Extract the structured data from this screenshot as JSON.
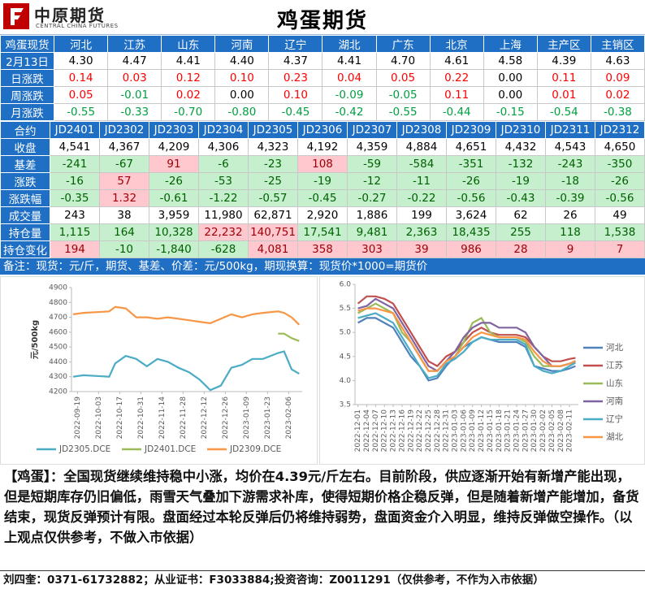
{
  "header": {
    "logo_cn": "中原期货",
    "logo_en": "CENTRAL CHINA FUTURES",
    "title": "鸡蛋期货"
  },
  "spot_table": {
    "header": [
      "鸡蛋现货",
      "河北",
      "江苏",
      "山东",
      "河南",
      "辽宁",
      "湖北",
      "广东",
      "北京",
      "上海",
      "主产区",
      "主销区"
    ],
    "rows": [
      [
        "2月13日",
        "4.30",
        "4.47",
        "4.41",
        "4.40",
        "4.37",
        "4.41",
        "4.70",
        "4.61",
        "4.58",
        "4.39",
        "4.63"
      ],
      [
        "日涨跌",
        "0.14",
        "0.03",
        "0.12",
        "0.10",
        "0.23",
        "0.04",
        "0.05",
        "0.22",
        "0.00",
        "0.11",
        "0.09"
      ],
      [
        "周涨跌",
        "0.05",
        "-0.01",
        "0.02",
        "0.00",
        "0.10",
        "-0.09",
        "-0.05",
        "0.11",
        "0.00",
        "0.01",
        "0.02"
      ],
      [
        "月涨跌",
        "-0.55",
        "-0.33",
        "-0.70",
        "-0.80",
        "-0.45",
        "-0.42",
        "-0.55",
        "-0.44",
        "-0.15",
        "-0.54",
        "-0.38"
      ]
    ]
  },
  "futures_table": {
    "header": [
      "合约",
      "JD2401",
      "JD2302",
      "JD2303",
      "JD2304",
      "JD2305",
      "JD2306",
      "JD2307",
      "JD2308",
      "JD2309",
      "JD2310",
      "JD2311",
      "JD2312"
    ],
    "rows": [
      [
        "收盘",
        "4,541",
        "4,367",
        "4,209",
        "4,306",
        "4,323",
        "4,192",
        "4,359",
        "4,884",
        "4,651",
        "4,432",
        "4,543",
        "4,650"
      ],
      [
        "基差",
        "-241",
        "-67",
        "91",
        "-6",
        "-23",
        "108",
        "-59",
        "-584",
        "-351",
        "-132",
        "-243",
        "-350"
      ],
      [
        "涨跌",
        "-16",
        "57",
        "-26",
        "-53",
        "-25",
        "-19",
        "-12",
        "-11",
        "-26",
        "-19",
        "-18",
        "-26"
      ],
      [
        "涨跌幅",
        "-0.35",
        "1.32",
        "-0.61",
        "-1.22",
        "-0.57",
        "-0.45",
        "-0.27",
        "-0.22",
        "-0.56",
        "-0.43",
        "-0.39",
        "-0.56"
      ],
      [
        "成交量",
        "243",
        "38",
        "3,959",
        "11,980",
        "62,871",
        "2,920",
        "1,886",
        "199",
        "3,624",
        "62",
        "26",
        "49"
      ],
      [
        "持仓量",
        "1,115",
        "164",
        "10,328",
        "22,232",
        "140,751",
        "17,541",
        "9,481",
        "2,363",
        "18,435",
        "255",
        "118",
        "1,538"
      ],
      [
        "持仓变化",
        "194",
        "-10",
        "-1,840",
        "-628",
        "4,081",
        "358",
        "303",
        "39",
        "986",
        "28",
        "9",
        "7"
      ]
    ]
  },
  "note": "备注：现货：元/斤，期货、基差、价差：元/500kg，期现换算：现货价*1000=期货价",
  "chart_data": [
    {
      "type": "line",
      "ylabel": "元/500kg",
      "x": [
        "2022-09-16",
        "2022-09-23",
        "2022-10-10",
        "2022-10-14",
        "2022-10-21",
        "2022-10-28",
        "2022-11-04",
        "2022-11-11",
        "2022-11-18",
        "2022-11-25",
        "2022-12-02",
        "2022-12-09",
        "2022-12-16",
        "2022-12-23",
        "2022-12-30",
        "2023-01-06",
        "2023-01-13",
        "2023-01-20",
        "2023-01-30",
        "2023-02-03",
        "2023-02-08",
        "2023-02-13"
      ],
      "xlim": [
        "2022-09-15",
        "2023-02-15"
      ],
      "xticks": [
        "2022-09-19",
        "2022-10-03",
        "2022-10-17",
        "2022-10-31",
        "2022-11-14",
        "2022-11-28",
        "2022-12-12",
        "2022-12-26",
        "2023-01-09",
        "2023-01-23",
        "2023-02-06"
      ],
      "ylim": [
        4200,
        4900
      ],
      "yticks": [
        4200,
        4300,
        4400,
        4500,
        4600,
        4700,
        4800,
        4900
      ],
      "grid": false,
      "legend": "bottom",
      "series": [
        {
          "name": "JD2305.DCE",
          "color": "#4bacc6",
          "values": [
            4300,
            4310,
            4300,
            4390,
            4440,
            4420,
            4370,
            4420,
            4400,
            4360,
            4330,
            4280,
            4210,
            4240,
            4360,
            4380,
            4420,
            4420,
            4460,
            4470,
            4350,
            4320
          ]
        },
        {
          "name": "JD2401.DCE",
          "color": "#9bbb59",
          "values": [
            null,
            null,
            null,
            null,
            null,
            null,
            null,
            null,
            null,
            null,
            null,
            null,
            null,
            null,
            null,
            null,
            null,
            null,
            4590,
            4590,
            4560,
            4540
          ]
        },
        {
          "name": "JD2309.DCE",
          "color": "#f79646",
          "values": [
            4720,
            4730,
            4740,
            4770,
            4760,
            4700,
            4700,
            4690,
            4700,
            4690,
            4680,
            4670,
            4660,
            4690,
            4720,
            4700,
            4720,
            4730,
            4740,
            4730,
            4700,
            4650
          ]
        }
      ]
    },
    {
      "type": "line",
      "x": [
        "2022-12-01",
        "2022-12-04",
        "2022-12-07",
        "2022-12-10",
        "2022-12-13",
        "2022-12-16",
        "2022-12-19",
        "2022-12-22",
        "2022-12-25",
        "2022-12-28",
        "2022-12-31",
        "2023-01-03",
        "2023-01-06",
        "2023-01-09",
        "2023-01-12",
        "2023-01-15",
        "2023-01-18",
        "2023-01-21",
        "2023-01-24",
        "2023-01-27",
        "2023-01-30",
        "2023-02-02",
        "2023-02-05",
        "2023-02-08",
        "2023-02-11",
        "2023-02-13"
      ],
      "xlim": [
        "2022-11-30",
        "2023-02-14"
      ],
      "xticks": [
        "2022-12-01",
        "2022-12-04",
        "2022-12-07",
        "2022-12-10",
        "2022-12-13",
        "2022-12-16",
        "2022-12-19",
        "2022-12-22",
        "2022-12-25",
        "2022-12-28",
        "2022-12-31",
        "2023-01-03",
        "2023-01-06",
        "2023-01-09",
        "2023-01-12",
        "2023-01-15",
        "2023-01-18",
        "2023-01-21",
        "2023-01-24",
        "2023-01-27",
        "2023-01-30",
        "2023-02-02",
        "2023-02-05",
        "2023-02-08",
        "2023-02-11"
      ],
      "ylim": [
        3.5,
        6
      ],
      "yticks": [
        3.5,
        {
          "value": 4,
          "label": "4.0"
        },
        4.5,
        {
          "value": 5,
          "label": "5.0"
        },
        5.5,
        {
          "value": 6,
          "label": "6.0"
        }
      ],
      "grid": false,
      "legend": "right",
      "series": [
        {
          "name": "河北",
          "color": "#4f81bd",
          "values": [
            5.2,
            5.3,
            5.3,
            5.2,
            5.1,
            4.8,
            4.5,
            4.3,
            4.0,
            4.05,
            4.3,
            4.5,
            4.7,
            4.8,
            4.9,
            4.85,
            4.8,
            4.8,
            4.8,
            4.7,
            4.3,
            4.25,
            4.2,
            4.2,
            4.25,
            4.3
          ]
        },
        {
          "name": "江苏",
          "color": "#c0504d",
          "values": [
            5.6,
            5.75,
            5.75,
            5.7,
            5.6,
            5.3,
            5.0,
            4.7,
            4.4,
            4.3,
            4.5,
            4.6,
            4.8,
            5.0,
            5.1,
            5.0,
            4.95,
            4.95,
            4.95,
            4.9,
            4.7,
            4.5,
            4.4,
            4.4,
            4.45,
            4.47
          ]
        },
        {
          "name": "山东",
          "color": "#9bbb59",
          "values": [
            5.4,
            5.5,
            5.6,
            5.5,
            5.4,
            5.0,
            4.8,
            4.5,
            4.2,
            4.2,
            4.4,
            4.5,
            4.8,
            5.2,
            5.3,
            5.0,
            4.9,
            4.9,
            4.9,
            4.8,
            4.5,
            4.3,
            4.3,
            4.3,
            4.35,
            4.41
          ]
        },
        {
          "name": "河南",
          "color": "#8064a2",
          "values": [
            5.5,
            5.55,
            5.7,
            5.6,
            5.5,
            5.2,
            4.9,
            4.6,
            4.3,
            4.2,
            4.4,
            4.6,
            4.9,
            5.1,
            5.2,
            5.2,
            5.1,
            5.1,
            5.1,
            5.0,
            4.7,
            4.5,
            4.3,
            4.3,
            4.35,
            4.4
          ]
        },
        {
          "name": "辽宁",
          "color": "#4bacc6",
          "values": [
            5.3,
            5.35,
            5.4,
            5.3,
            5.2,
            4.9,
            4.6,
            4.3,
            4.05,
            4.1,
            4.35,
            4.45,
            4.6,
            4.8,
            4.9,
            4.85,
            4.85,
            4.85,
            4.85,
            4.75,
            4.3,
            4.2,
            4.15,
            4.2,
            4.3,
            4.37
          ]
        },
        {
          "name": "湖北",
          "color": "#f79646",
          "values": [
            5.45,
            5.5,
            5.5,
            5.45,
            5.4,
            5.1,
            4.8,
            4.5,
            4.2,
            4.2,
            4.4,
            4.5,
            4.7,
            4.9,
            5.0,
            4.95,
            4.9,
            4.9,
            4.9,
            4.85,
            4.6,
            4.4,
            4.3,
            4.3,
            4.35,
            4.41
          ]
        }
      ]
    }
  ],
  "commentary": {
    "tag": "【鸡蛋】",
    "text": "：全国现货继续维持稳中小涨，均价在4.39元/斤左右。目前阶段，供应逐渐开始有新增产能出现，但是短期库存仍旧偏低，雨雪天气叠加下游需求补库，使得短期价格企稳反弹，但是随着新增产能增加，备货结束，现货反弹预计有限。盘面经过本轮反弹后仍将维持弱势，盘面资金介入明显，维持反弹做空操作。（以上观点仅供参考，不做入市依据）"
  },
  "footer": "刘四奎：0371-61732882；从业证书：F3033884;投资咨询：Z0011291（仅供参考，不作为入市依据）"
}
